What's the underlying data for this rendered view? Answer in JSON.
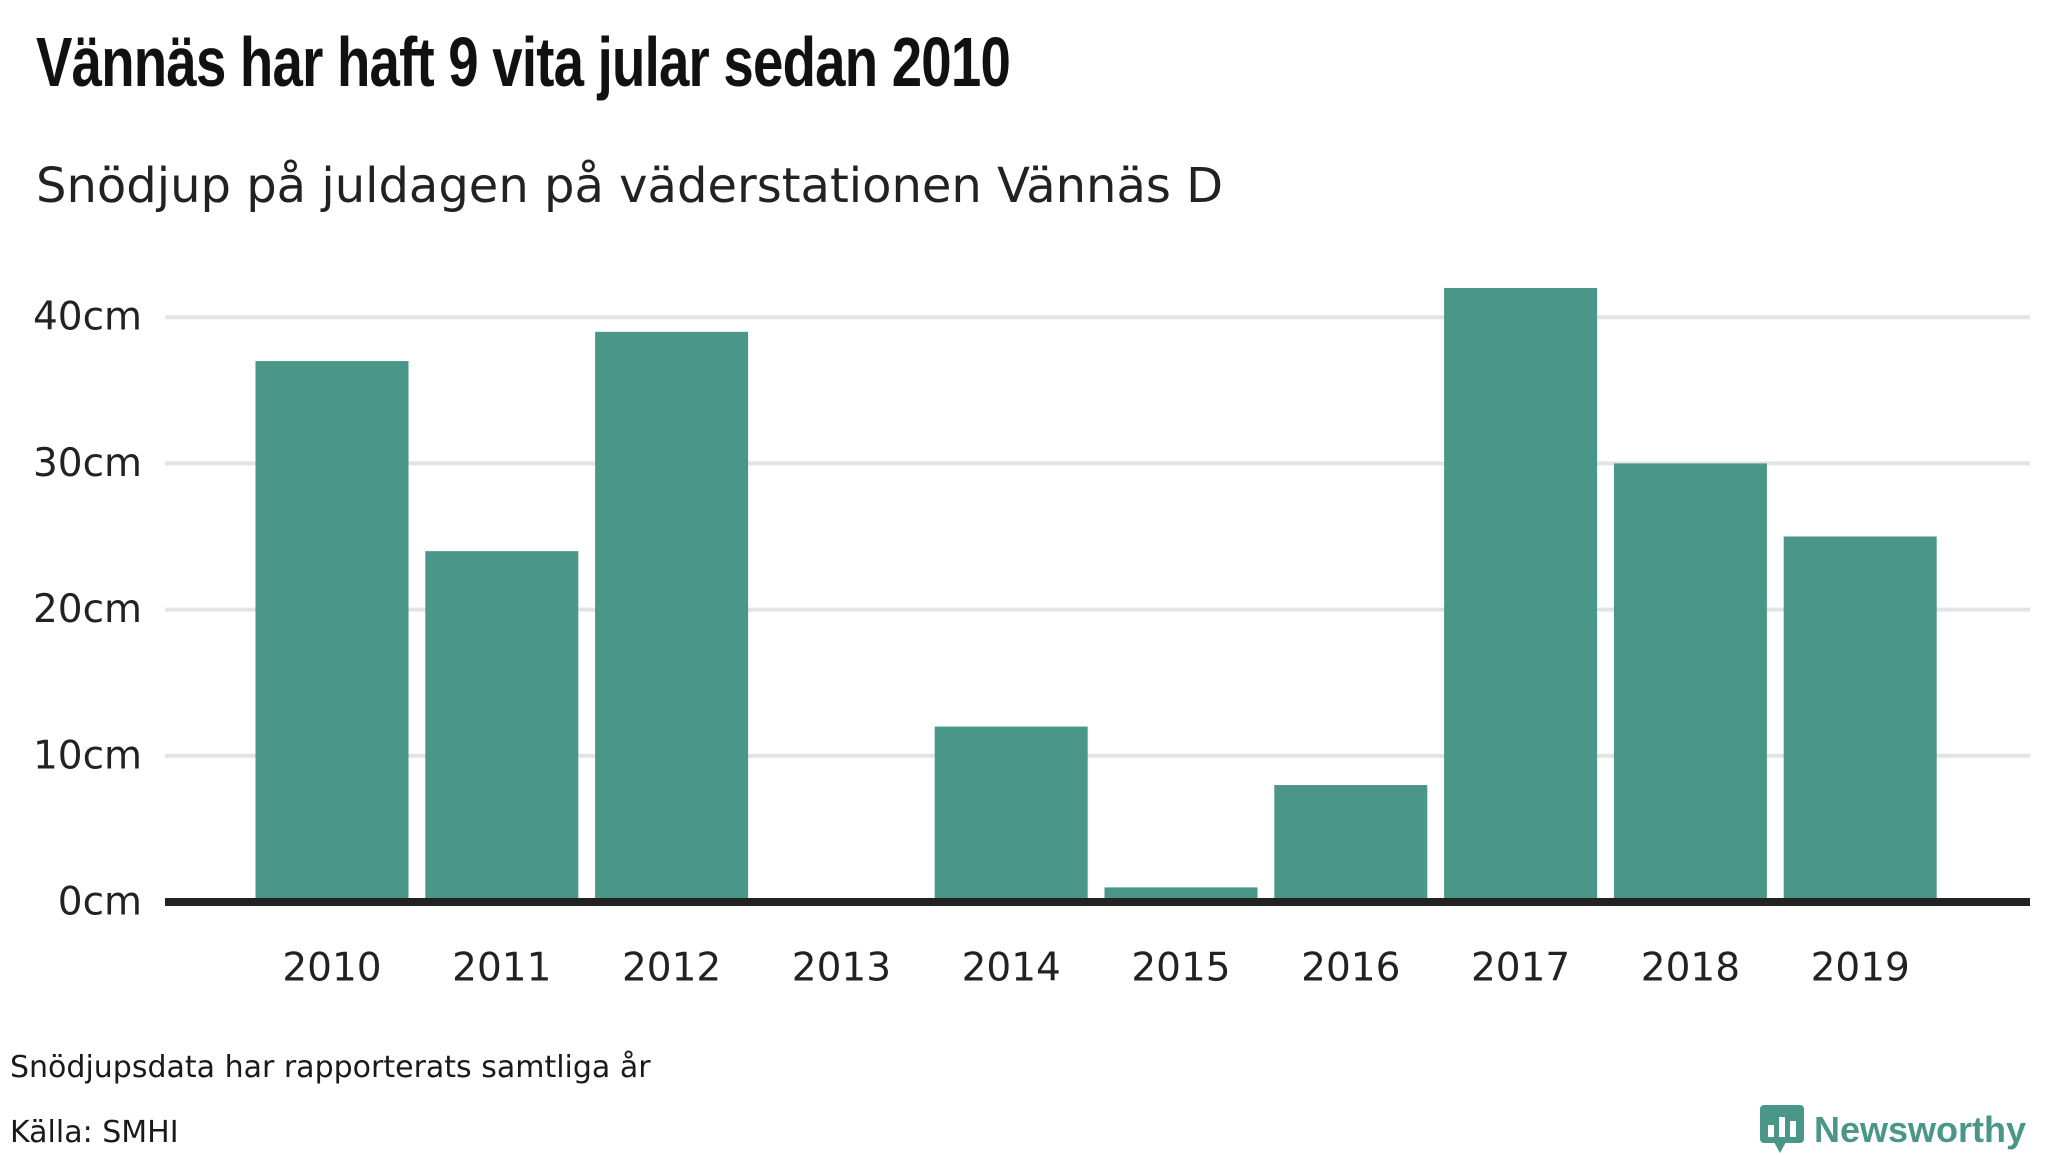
{
  "header": {
    "title": "Vännäs har haft 9 vita jular sedan 2010",
    "subtitle": "Snödjup på juldagen på väderstationen Vännäs D"
  },
  "footer": {
    "note": "Snödjupsdata har rapporterats samtliga år",
    "source": "Källa: SMHI",
    "brand": "Newsworthy",
    "brand_icon": "bar-chart-speech-bubble-icon"
  },
  "colors": {
    "bar": "#4a9689",
    "grid": "#e3e3e3",
    "baseline": "#222222",
    "brand": "#4a9689"
  },
  "chart_data": {
    "type": "bar",
    "title": "Vännäs har haft 9 vita jular sedan 2010",
    "subtitle": "Snödjup på juldagen på väderstationen Vännäs D",
    "xlabel": "",
    "ylabel": "",
    "categories": [
      "2010",
      "2011",
      "2012",
      "2013",
      "2014",
      "2015",
      "2016",
      "2017",
      "2018",
      "2019"
    ],
    "values": [
      37,
      24,
      39,
      0,
      12,
      1,
      8,
      42,
      30,
      25
    ],
    "ylim": [
      0,
      42
    ],
    "yticks": [
      0,
      10,
      20,
      30,
      40
    ],
    "ytick_labels": [
      "0cm",
      "10cm",
      "20cm",
      "30cm",
      "40cm"
    ],
    "grid": "horizontal",
    "legend": "none"
  }
}
